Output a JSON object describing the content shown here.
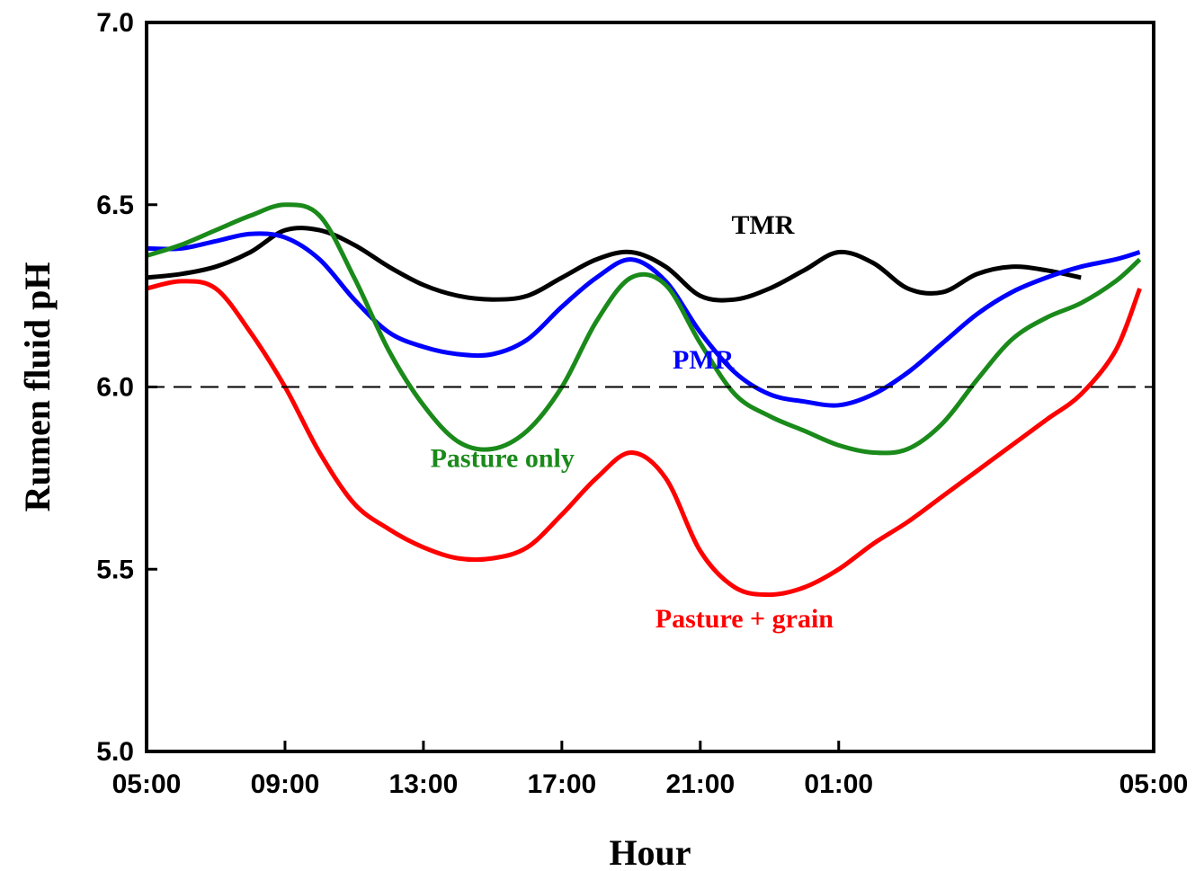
{
  "chart_data": {
    "type": "line",
    "xlabel": "Hour",
    "ylabel": "Rumen fluid pH",
    "x_tick_labels": [
      "05:00",
      "09:00",
      "13:00",
      "17:00",
      "21:00",
      "01:00",
      "05:00"
    ],
    "x_range_hours": [
      0,
      24
    ],
    "y_ticks": [
      "5.0",
      "5.5",
      "6.0",
      "6.5",
      "7.0"
    ],
    "ylim": [
      5.0,
      7.0
    ],
    "grid": false,
    "reference_line": {
      "y": 6.0,
      "style": "dashed"
    },
    "series": [
      {
        "name": "TMR",
        "color": "#000000",
        "label_anchor": {
          "x": 16.9,
          "y": 6.42
        },
        "points": [
          [
            0,
            6.3
          ],
          [
            1,
            6.31
          ],
          [
            2,
            6.33
          ],
          [
            3,
            6.37
          ],
          [
            4,
            6.43
          ],
          [
            5,
            6.43
          ],
          [
            6,
            6.39
          ],
          [
            7,
            6.33
          ],
          [
            8,
            6.28
          ],
          [
            9,
            6.25
          ],
          [
            10,
            6.24
          ],
          [
            11,
            6.25
          ],
          [
            12,
            6.3
          ],
          [
            13,
            6.35
          ],
          [
            14,
            6.37
          ],
          [
            15,
            6.33
          ],
          [
            16,
            6.25
          ],
          [
            17,
            6.24
          ],
          [
            18,
            6.27
          ],
          [
            19,
            6.32
          ],
          [
            20,
            6.37
          ],
          [
            21,
            6.34
          ],
          [
            22,
            6.27
          ],
          [
            23,
            6.26
          ],
          [
            24,
            6.31
          ],
          [
            25,
            6.33
          ],
          [
            26,
            6.32
          ],
          [
            27,
            6.3
          ]
        ]
      },
      {
        "name": "PMR",
        "color": "#0000ff",
        "label_anchor": {
          "x": 15.2,
          "y": 6.05
        },
        "points": [
          [
            0,
            6.38
          ],
          [
            1,
            6.38
          ],
          [
            2,
            6.4
          ],
          [
            3,
            6.42
          ],
          [
            4,
            6.41
          ],
          [
            5,
            6.35
          ],
          [
            6,
            6.24
          ],
          [
            7,
            6.15
          ],
          [
            8,
            6.11
          ],
          [
            9,
            6.09
          ],
          [
            10,
            6.09
          ],
          [
            11,
            6.13
          ],
          [
            12,
            6.22
          ],
          [
            13,
            6.3
          ],
          [
            14,
            6.35
          ],
          [
            15,
            6.29
          ],
          [
            16,
            6.15
          ],
          [
            17,
            6.04
          ],
          [
            18,
            5.98
          ],
          [
            19,
            5.96
          ],
          [
            20,
            5.95
          ],
          [
            21,
            5.98
          ],
          [
            22,
            6.04
          ],
          [
            23,
            6.12
          ],
          [
            24,
            6.2
          ],
          [
            25,
            6.26
          ],
          [
            26,
            6.3
          ],
          [
            27,
            6.33
          ],
          [
            28,
            6.35
          ],
          [
            28.7,
            6.37
          ]
        ]
      },
      {
        "name": "Pasture only",
        "color": "#1a8a1a",
        "label_anchor": {
          "x": 8.2,
          "y": 5.78
        },
        "points": [
          [
            0,
            6.36
          ],
          [
            1,
            6.39
          ],
          [
            2,
            6.43
          ],
          [
            3,
            6.47
          ],
          [
            4,
            6.5
          ],
          [
            5,
            6.47
          ],
          [
            6,
            6.3
          ],
          [
            7,
            6.1
          ],
          [
            8,
            5.95
          ],
          [
            9,
            5.85
          ],
          [
            10,
            5.83
          ],
          [
            11,
            5.88
          ],
          [
            12,
            6.0
          ],
          [
            13,
            6.18
          ],
          [
            14,
            6.3
          ],
          [
            15,
            6.28
          ],
          [
            16,
            6.12
          ],
          [
            17,
            5.98
          ],
          [
            18,
            5.92
          ],
          [
            19,
            5.88
          ],
          [
            20,
            5.84
          ],
          [
            21,
            5.82
          ],
          [
            22,
            5.83
          ],
          [
            23,
            5.9
          ],
          [
            24,
            6.02
          ],
          [
            25,
            6.13
          ],
          [
            26,
            6.19
          ],
          [
            27,
            6.23
          ],
          [
            28,
            6.29
          ],
          [
            28.7,
            6.35
          ]
        ]
      },
      {
        "name": "Pasture + grain",
        "color": "#ff0000",
        "label_anchor": {
          "x": 14.7,
          "y": 5.34
        },
        "points": [
          [
            0,
            6.27
          ],
          [
            1,
            6.29
          ],
          [
            2,
            6.27
          ],
          [
            3,
            6.15
          ],
          [
            4,
            6.0
          ],
          [
            5,
            5.82
          ],
          [
            6,
            5.68
          ],
          [
            7,
            5.61
          ],
          [
            8,
            5.56
          ],
          [
            9,
            5.53
          ],
          [
            10,
            5.53
          ],
          [
            11,
            5.56
          ],
          [
            12,
            5.65
          ],
          [
            13,
            5.75
          ],
          [
            14,
            5.82
          ],
          [
            15,
            5.75
          ],
          [
            16,
            5.55
          ],
          [
            17,
            5.45
          ],
          [
            18,
            5.43
          ],
          [
            19,
            5.45
          ],
          [
            20,
            5.5
          ],
          [
            21,
            5.57
          ],
          [
            22,
            5.63
          ],
          [
            23,
            5.7
          ],
          [
            24,
            5.77
          ],
          [
            25,
            5.84
          ],
          [
            26,
            5.91
          ],
          [
            27,
            5.98
          ],
          [
            28,
            6.1
          ],
          [
            28.7,
            6.27
          ]
        ]
      }
    ]
  }
}
